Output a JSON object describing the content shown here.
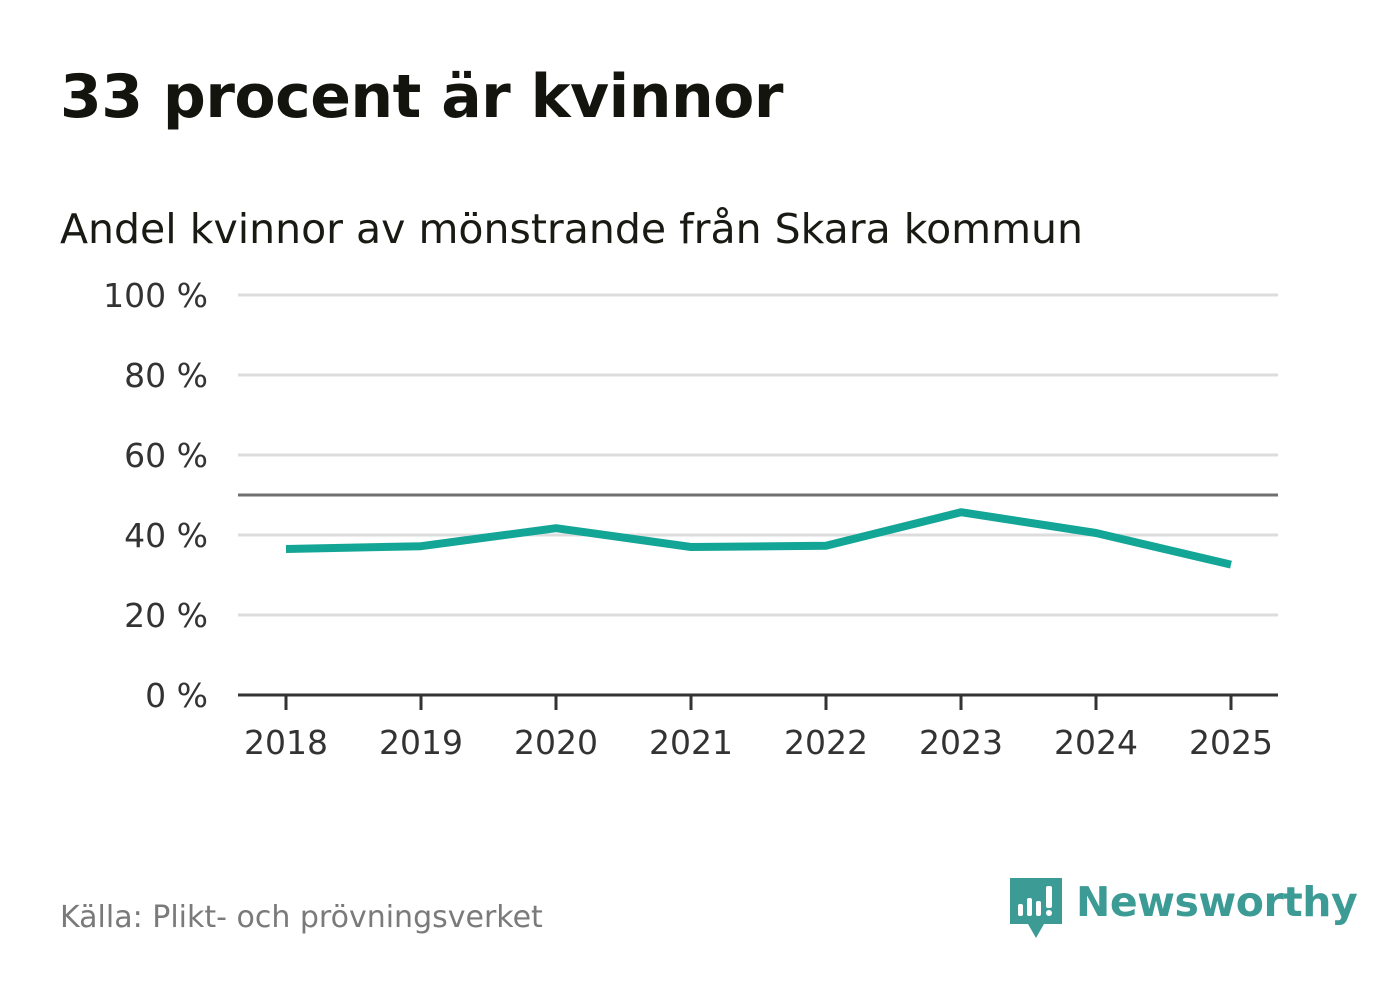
{
  "headline": "33 procent är kvinnor",
  "subtitle": "Andel kvinnor av mönstrande från Skara kommun",
  "source": "Källa: Plikt- och prövningsverket",
  "logo": {
    "text": "Newsworthy",
    "icon": "newsworthy-bar-chart-icon"
  },
  "colors": {
    "line": "#13a596",
    "grid": "#dcdcdc",
    "reference": "#707070",
    "axis": "#333333",
    "logo": "#3d9b96"
  },
  "chart_data": {
    "type": "line",
    "title": "Andel kvinnor av mönstrande från Skara kommun",
    "xlabel": "",
    "ylabel": "",
    "x": [
      "2018",
      "2019",
      "2020",
      "2021",
      "2022",
      "2023",
      "2024",
      "2025"
    ],
    "series": [
      {
        "name": "Andel kvinnor",
        "values": [
          36.5,
          37.2,
          41.7,
          37.0,
          37.3,
          45.7,
          40.5,
          32.6
        ]
      }
    ],
    "ylim": [
      0,
      100
    ],
    "yticks": [
      0,
      20,
      40,
      60,
      80,
      100
    ],
    "ytick_labels": [
      "0 %",
      "20 %",
      "40 %",
      "60 %",
      "80 %",
      "100 %"
    ],
    "reference_line": 50,
    "grid": true
  }
}
